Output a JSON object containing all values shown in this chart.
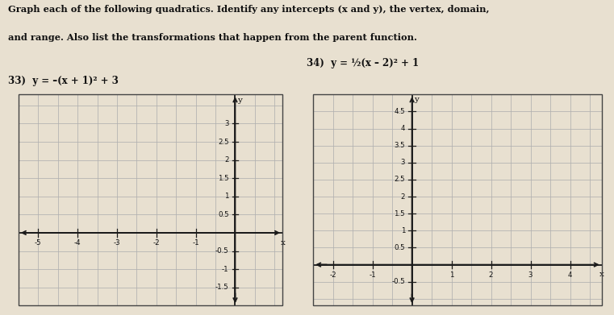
{
  "title_line1": "Graph each of the following quadratics. Identify any intercepts (x and y), the vertex, domain,",
  "title_line2": "and range. Also list the transformations that happen from the parent function.",
  "problem33_label": "33)  y = –(x + 1)² + 3",
  "problem34_label": "34)  y = ½(x – 2)² + 1",
  "graph1": {
    "xlim": [
      -5.5,
      1.2
    ],
    "ylim": [
      -2.0,
      3.8
    ],
    "x_axis_ticks": [
      -5,
      -4,
      -3,
      -2,
      -1
    ],
    "y_axis_ticks": [
      -1.5,
      -1.0,
      -0.5,
      0.5,
      1.0,
      1.5,
      2.0,
      2.5,
      3.0
    ],
    "grid_major_every": 0.5,
    "xlabel": "x",
    "ylabel": "y"
  },
  "graph2": {
    "xlim": [
      -2.5,
      4.8
    ],
    "ylim": [
      -1.2,
      5.0
    ],
    "x_axis_ticks": [
      -2,
      -1,
      1,
      2,
      3,
      4
    ],
    "y_axis_ticks": [
      -0.5,
      0.5,
      1.0,
      1.5,
      2.0,
      2.5,
      3.0,
      3.5,
      4.0,
      4.5
    ],
    "grid_major_every": 0.5,
    "xlabel": "x",
    "ylabel": "y"
  },
  "page_bg": "#e8e0d0",
  "grid_color": "#b0b0b0",
  "axis_color": "#1a1a1a",
  "border_color": "#444444",
  "text_color": "#111111",
  "title_fontsize": 8.2,
  "label_fontsize": 8.5,
  "tick_fontsize": 6.2,
  "axis_label_fontsize": 7.5
}
